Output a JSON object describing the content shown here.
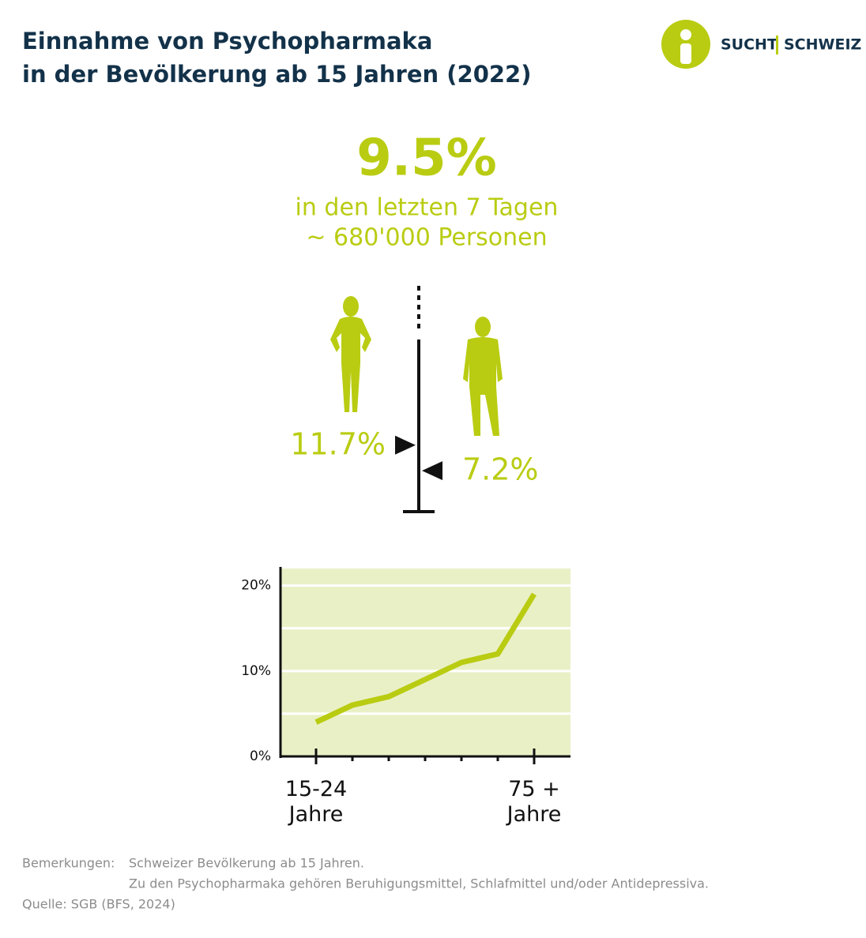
{
  "header": {
    "title_lines": [
      "Einnahme von Psychopharmaka",
      "in der Bevölkerung ab 15 Jahren (2022)"
    ],
    "logo": [
      "SUCHT",
      "SCHWEIZ"
    ]
  },
  "headline": {
    "value_label": "9.5%",
    "lines": [
      "in den letzten 7 Tagen",
      "~ 680'000 Personen"
    ]
  },
  "gender": {
    "values": [
      11.7,
      7.2
    ],
    "value_labels": [
      "11.7%",
      "7.2%"
    ]
  },
  "chart_data": {
    "type": "line",
    "categories": [
      "15-24 Jahre",
      null,
      null,
      null,
      null,
      null,
      "75 + Jahre"
    ],
    "values": [
      4,
      6,
      7,
      9,
      11,
      12,
      19
    ],
    "color": "#b9cc12",
    "ylim": [
      0,
      22
    ],
    "yticks": [
      {
        "value": 0,
        "label": "0%"
      },
      {
        "value": 10,
        "label": "10%"
      },
      {
        "value": 20,
        "label": "20%"
      }
    ],
    "ygrid": [
      5,
      10,
      15,
      20
    ],
    "grid": true
  },
  "footer": {
    "notes_label": "Bemerkungen:",
    "notes": [
      "Schweizer Bevölkerung ab 15 Jahren.",
      "Zu den Psychopharmaka gehören Beruhigungsmittel, Schlafmittel und/oder Antidepressiva."
    ],
    "source": "Quelle: SGB (BFS, 2024)"
  }
}
